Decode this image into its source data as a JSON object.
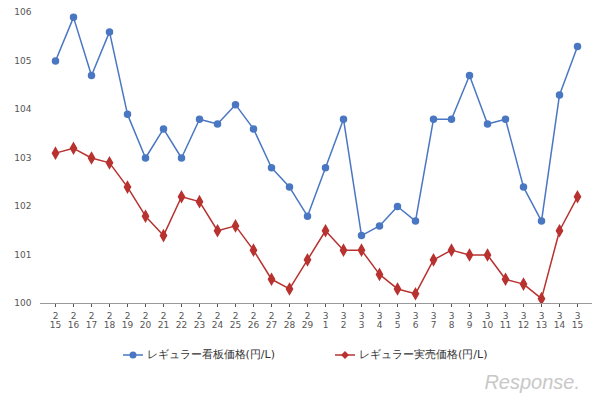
{
  "chart_data": {
    "type": "line",
    "categories": [
      "2\n15",
      "2\n16",
      "2\n17",
      "2\n18",
      "2\n19",
      "2\n20",
      "2\n21",
      "2\n22",
      "2\n23",
      "2\n24",
      "2\n25",
      "2\n26",
      "2\n27",
      "2\n28",
      "2\n29",
      "3\n1",
      "3\n2",
      "3\n3",
      "3\n4",
      "3\n5",
      "3\n6",
      "3\n7",
      "3\n8",
      "3\n9",
      "3\n10",
      "3\n11",
      "3\n12",
      "3\n13",
      "3\n14",
      "3\n15"
    ],
    "series": [
      {
        "name": "レギュラー看板価格(円/L)",
        "color": "#4a77c2",
        "marker": "circle",
        "values": [
          105.0,
          105.9,
          104.7,
          105.6,
          103.9,
          103.0,
          103.6,
          103.0,
          103.8,
          103.7,
          104.1,
          103.6,
          102.8,
          102.4,
          101.8,
          102.8,
          103.8,
          101.4,
          101.6,
          102.0,
          101.7,
          103.8,
          103.8,
          104.7,
          103.7,
          103.8,
          102.4,
          101.7,
          104.3,
          105.3
        ]
      },
      {
        "name": "レギュラー実売価格(円/L)",
        "color": "#b8322f",
        "marker": "diamond",
        "values": [
          103.1,
          103.2,
          103.0,
          102.9,
          102.4,
          101.8,
          101.4,
          102.2,
          102.1,
          101.5,
          101.6,
          101.1,
          100.5,
          100.3,
          100.9,
          101.5,
          101.1,
          101.1,
          100.6,
          100.3,
          100.2,
          100.9,
          101.1,
          101.0,
          101.0,
          100.5,
          100.4,
          100.1,
          101.5,
          102.2
        ]
      }
    ],
    "ylim": [
      100,
      106
    ],
    "yticks": [
      100,
      101,
      102,
      103,
      104,
      105,
      106
    ],
    "grid": false,
    "legend": "bottom",
    "annotations": [
      "Response."
    ]
  }
}
